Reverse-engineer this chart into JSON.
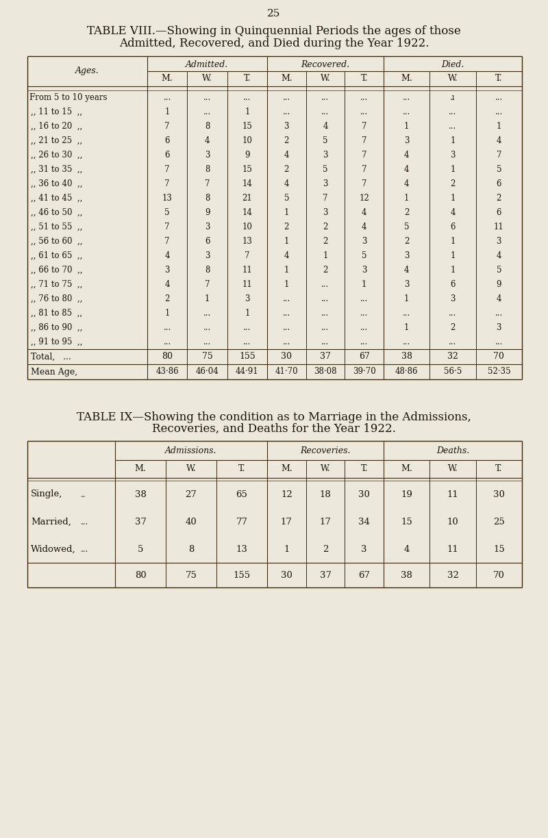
{
  "bg_color": "#ede8dc",
  "page_number": "25",
  "table8_title1": "TABLE VIII.—Showing in Quinquennial Periods the ages of those",
  "table8_title2": "Admitted, Recovered, and Died during the Year 1922.",
  "table8_col_groups": [
    "Admitted.",
    "Recovered.",
    "Died."
  ],
  "table8_subheaders": [
    "M.",
    "W.",
    "T.",
    "M.",
    "W.",
    "T.",
    "M.",
    "W.",
    "T."
  ],
  "table8_row_label": "Ages.",
  "table8_ages": [
    "From 5 to 10 years",
    ",, 11 to 15  ,,",
    ",, 16 to 20  ,,",
    ",, 21 to 25  ,,",
    ",, 26 to 30  ,,",
    ",, 31 to 35  ,,",
    ",, 36 to 40  ,,",
    ",, 41 to 45  ,,",
    ",, 46 to 50  ,,",
    ",, 51 to 55  ,,",
    ",, 56 to 60  ,,",
    ",, 61 to 65  ,,",
    ",, 66 to 70  ,,",
    ",, 71 to 75  ,,",
    ",, 76 to 80  ,,",
    ",, 81 to 85  ,,",
    ",, 86 to 90  ,,",
    ",, 91 to 95  ,,"
  ],
  "table8_data": [
    [
      "...",
      "...",
      "...",
      "...",
      "...",
      "...",
      "...",
      ".ı",
      "..."
    ],
    [
      "1",
      "...",
      "1",
      "...",
      "...",
      "...",
      "...",
      "...",
      "..."
    ],
    [
      "7",
      "8",
      "15",
      "3",
      "4",
      "7",
      "1",
      "...",
      "1"
    ],
    [
      "6",
      "4",
      "10",
      "2",
      "5",
      "7",
      "3",
      "1",
      "4"
    ],
    [
      "6",
      "3",
      "9",
      "4",
      "3",
      "7",
      "4",
      "3",
      "7"
    ],
    [
      "7",
      "8",
      "15",
      "2",
      "5",
      "7",
      "4",
      "1",
      "5"
    ],
    [
      "7",
      "7",
      "14",
      "4",
      "3",
      "7",
      "4",
      "2",
      "6"
    ],
    [
      "13",
      "8",
      "21",
      "5",
      "7",
      "12",
      "1",
      "1",
      "2"
    ],
    [
      "5",
      "9",
      "14",
      "1",
      "3",
      "4",
      "2",
      "4",
      "6"
    ],
    [
      "7",
      "3",
      "10",
      "2",
      "2",
      "4",
      "5",
      "6",
      "11"
    ],
    [
      "7",
      "6",
      "13",
      "1",
      "2",
      "3",
      "2",
      "1",
      "3"
    ],
    [
      "4",
      "3",
      "7",
      "4",
      "1",
      "5",
      "3",
      "1",
      "4"
    ],
    [
      "3",
      "8",
      "11",
      "1",
      "2",
      "3",
      "4",
      "1",
      "5"
    ],
    [
      "4",
      "7",
      "11",
      "1",
      "...",
      "1",
      "3",
      "6",
      "9"
    ],
    [
      "2",
      "1",
      "3",
      "...",
      "...",
      "...",
      "1",
      "3",
      "4"
    ],
    [
      "1",
      "...",
      "1",
      "...",
      "...",
      "...",
      "...",
      "...",
      "..."
    ],
    [
      "...",
      "...",
      "...",
      "...",
      "...",
      "...",
      "1",
      "2",
      "3"
    ],
    [
      "...",
      "...",
      "...",
      "...",
      "...",
      "...",
      "...",
      "...",
      "..."
    ]
  ],
  "table8_total_label": "Total,   ...",
  "table8_mean_label": "Mean Age,",
  "table8_total": [
    "80",
    "75",
    "155",
    "30",
    "37",
    "67",
    "38",
    "32",
    "70"
  ],
  "table8_mean": [
    "43·86",
    "46·04",
    "44·91",
    "41·70",
    "38·08",
    "39·70",
    "48·86",
    "56·5",
    "52·35"
  ],
  "table9_title1": "TABLE IX—Showing the condition as to Marriage in the Admissions,",
  "table9_title2": "Recoveries, and Deaths for the Year 1922.",
  "table9_col_groups": [
    "Admissions.",
    "Recoveries.",
    "Deaths."
  ],
  "table9_subheaders": [
    "M.",
    "W.",
    "T.",
    "M.",
    "W.",
    "T.",
    "M.",
    "W.",
    "T."
  ],
  "table9_row_labels": [
    "Single,",
    "Married,",
    "Widowed,"
  ],
  "table9_row_dots": [
    "..",
    "...",
    "..."
  ],
  "table9_data": [
    [
      "38",
      "27",
      "65",
      "12",
      "18",
      "30",
      "19",
      "11",
      "30"
    ],
    [
      "37",
      "40",
      "77",
      "17",
      "17",
      "34",
      "15",
      "10",
      "25"
    ],
    [
      "5",
      "8",
      "13",
      "1",
      "2",
      "3",
      "4",
      "11",
      "15"
    ]
  ],
  "table9_total": [
    "80",
    "75",
    "155",
    "30",
    "37",
    "67",
    "38",
    "32",
    "70"
  ],
  "text_color": "#1a1208",
  "line_color": "#3a2a10"
}
